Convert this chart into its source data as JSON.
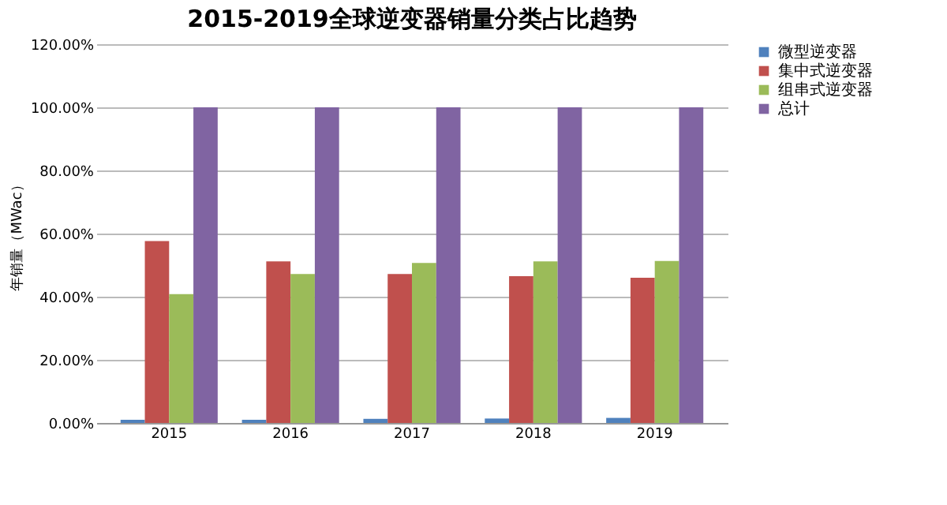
{
  "chart_data": {
    "type": "bar",
    "title": "2015-2019全球逆变器销量分类占比趋势",
    "ylabel": "年销量（MWac）",
    "categories": [
      "2015",
      "2016",
      "2017",
      "2018",
      "2019"
    ],
    "series": [
      {
        "name": "微型逆变器",
        "color": "#4f81bd",
        "values": [
          1.0,
          1.0,
          1.3,
          1.4,
          1.6
        ]
      },
      {
        "name": "集中式逆变器",
        "color": "#c0504d",
        "values": [
          57.6,
          51.2,
          47.2,
          46.5,
          46.0
        ]
      },
      {
        "name": "组串式逆变器",
        "color": "#9bbb59",
        "values": [
          40.8,
          47.2,
          50.7,
          51.2,
          51.3
        ]
      },
      {
        "name": "总计",
        "color": "#8064a2",
        "values": [
          100,
          100,
          100,
          100,
          100
        ]
      }
    ],
    "ylim": [
      0,
      120
    ],
    "yticks": [
      {
        "value": 0,
        "label": "0.00%"
      },
      {
        "value": 20,
        "label": "20.00%"
      },
      {
        "value": 40,
        "label": "40.00%"
      },
      {
        "value": 60,
        "label": "60.00%"
      },
      {
        "value": 80,
        "label": "80.00%"
      },
      {
        "value": 100,
        "label": "100.00%"
      },
      {
        "value": 120,
        "label": "120.00%"
      }
    ],
    "grid": "y",
    "legend": "right"
  }
}
